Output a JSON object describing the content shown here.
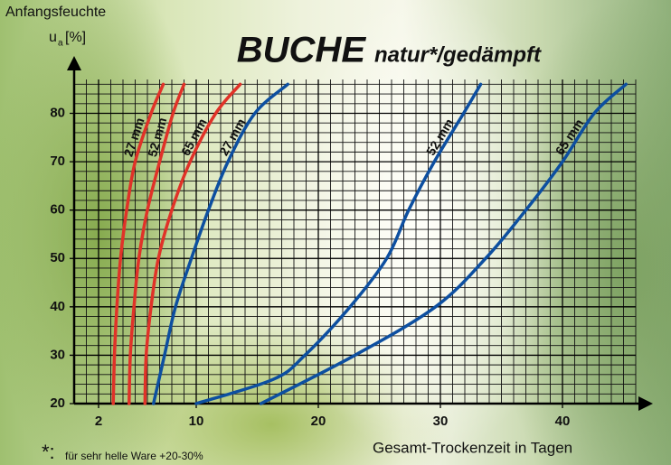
{
  "chart_data": {
    "type": "line",
    "title": "BUCHE",
    "subtitle": "natur*/gedämpft",
    "ylabel": "Anfangsfeuchte",
    "ylabel_symbol": "u",
    "ylabel_subscript": "a",
    "ylabel_unit": "[%]",
    "xlabel": "Gesamt-Trockenzeit in Tagen",
    "footnote_marker": "*:",
    "footnote": "für sehr helle Ware +20-30%",
    "xlim": [
      0,
      46
    ],
    "ylim": [
      20,
      87
    ],
    "xticks": [
      2,
      10,
      20,
      30,
      40
    ],
    "yticks": [
      20,
      30,
      40,
      50,
      60,
      70,
      80
    ],
    "grid": true,
    "series": [
      {
        "name": "27 mm",
        "color": "#e03228",
        "x": [
          3.2,
          3.3,
          3.5,
          3.8,
          4.3,
          5.0,
          6.3,
          7.3
        ],
        "values": [
          20,
          30,
          40,
          50,
          60,
          70,
          80,
          86
        ]
      },
      {
        "name": "52 mm",
        "color": "#e03228",
        "x": [
          4.5,
          4.6,
          4.9,
          5.3,
          6.0,
          7.0,
          8.1,
          9.0
        ],
        "values": [
          20,
          30,
          40,
          50,
          60,
          70,
          80,
          86
        ]
      },
      {
        "name": "65 mm",
        "color": "#e03228",
        "x": [
          5.8,
          5.9,
          6.3,
          6.9,
          8.0,
          9.5,
          11.6,
          13.6
        ],
        "values": [
          20,
          30,
          40,
          50,
          60,
          70,
          80,
          86
        ]
      },
      {
        "name": "27 mm",
        "color": "#0d4fa0",
        "x": [
          6.5,
          7.4,
          8.3,
          9.6,
          11.0,
          12.6,
          14.8,
          17.5
        ],
        "values": [
          20,
          30,
          40,
          50,
          60,
          70,
          80,
          86
        ]
      },
      {
        "name": "52 mm",
        "color": "#0d4fa0",
        "x": [
          10,
          16.3,
          18.9,
          22.6,
          25.6,
          27.4,
          29.5,
          31.9,
          33.3
        ],
        "values": [
          20,
          25,
          30,
          40,
          50,
          60,
          70,
          80,
          86
        ]
      },
      {
        "name": "65 mm",
        "color": "#0d4fa0",
        "x": [
          15.3,
          23,
          29.6,
          33.7,
          37,
          40,
          42.6,
          45.2
        ],
        "values": [
          20,
          30,
          40,
          50,
          60,
          70,
          80,
          86
        ]
      }
    ]
  }
}
